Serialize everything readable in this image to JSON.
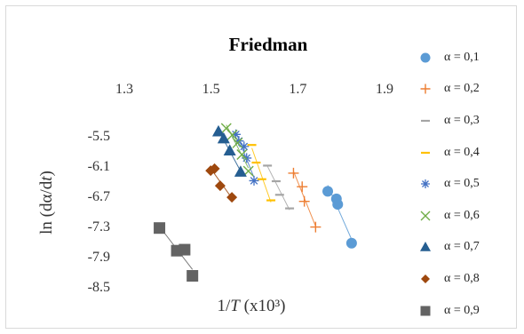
{
  "chart_data": {
    "type": "scatter",
    "title": "Friedman",
    "xlabel": "1/T (x10³)",
    "ylabel": "ln (dα/dt)",
    "xlim": [
      1.3,
      1.9
    ],
    "ylim": [
      -8.5,
      -5.5
    ],
    "x_axis_position": "top",
    "x_ticks": [
      "1.3",
      "1.5",
      "1.7",
      "1.9"
    ],
    "y_ticks": [
      "-5.5",
      "-6.1",
      "-6.7",
      "-7.3",
      "-7.9",
      "-8.5"
    ],
    "grid": false,
    "legend_position": "right",
    "series": [
      {
        "name": "α = 0,1",
        "marker": "circle",
        "color": "#5b9bd5",
        "x": [
          1.769,
          1.789,
          1.792,
          1.824
        ],
        "y": [
          -6.6,
          -6.75,
          -6.86,
          -7.63
        ]
      },
      {
        "name": "α = 0,2",
        "marker": "plus",
        "color": "#ed7d31",
        "x": [
          1.69,
          1.71,
          1.715,
          1.741
        ],
        "y": [
          -6.24,
          -6.51,
          -6.8,
          -7.31
        ]
      },
      {
        "name": "α = 0,3",
        "marker": "dash",
        "color": "#a5a5a5",
        "x": [
          1.63,
          1.65,
          1.658,
          1.681
        ],
        "y": [
          -6.09,
          -6.4,
          -6.67,
          -6.94
        ]
      },
      {
        "name": "α = 0,4",
        "marker": "dash",
        "color": "#ffc000",
        "x": [
          1.594,
          1.604,
          1.617,
          1.638
        ],
        "y": [
          -5.68,
          -6.03,
          -6.36,
          -6.78
        ]
      },
      {
        "name": "α = 0,5",
        "marker": "star",
        "color": "#4472c4",
        "x": [
          1.557,
          1.564,
          1.576,
          1.582,
          1.599
        ],
        "y": [
          -5.47,
          -5.6,
          -5.71,
          -5.94,
          -6.39
        ]
      },
      {
        "name": "α = 0,6",
        "marker": "x",
        "color": "#70ad47",
        "x": [
          1.535,
          1.549,
          1.561,
          1.571,
          1.586
        ],
        "y": [
          -5.35,
          -5.48,
          -5.64,
          -5.87,
          -6.2
        ]
      },
      {
        "name": "α = 0,7",
        "marker": "triangle",
        "color": "#255e91",
        "x": [
          1.517,
          1.529,
          1.543,
          1.568
        ],
        "y": [
          -5.41,
          -5.55,
          -5.79,
          -6.21
        ]
      },
      {
        "name": "α = 0,8",
        "marker": "diamond",
        "color": "#9e480e",
        "x": [
          1.499,
          1.508,
          1.521,
          1.548
        ],
        "y": [
          -6.19,
          -6.15,
          -6.49,
          -6.72
        ]
      },
      {
        "name": "α = 0,9",
        "marker": "square",
        "color": "#636363",
        "x": [
          1.381,
          1.421,
          1.439,
          1.457
        ],
        "y": [
          -7.33,
          -7.78,
          -7.76,
          -8.28
        ]
      }
    ]
  }
}
